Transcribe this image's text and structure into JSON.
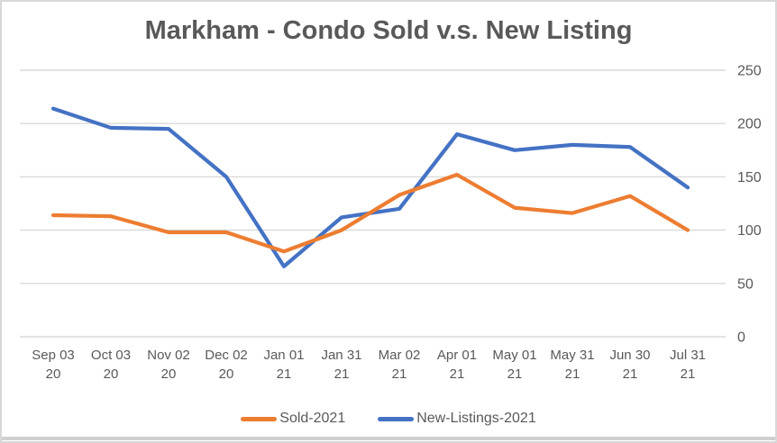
{
  "title": "Markham - Condo Sold v.s. New Listing",
  "colors": {
    "sold": "#ED7D31",
    "new_listings": "#4472C4",
    "gridline": "#d9d9d9",
    "axis_text": "#595959",
    "title_text": "#595959",
    "frame_border": "#d8d8d8",
    "bottom_edge": "#cfcfcf"
  },
  "legend": {
    "items": [
      {
        "label": "Sold-2021",
        "color": "#ED7D31"
      },
      {
        "label": "New-Listings-2021",
        "color": "#4472C4"
      }
    ]
  },
  "y_axis": {
    "side": "right",
    "ticks": [
      0,
      50,
      100,
      150,
      200,
      250
    ]
  },
  "chart_data": {
    "type": "line",
    "title": "Markham - Condo Sold v.s. New Listing",
    "categories": [
      "Sep 03 20",
      "Oct 03 20",
      "Nov 02 20",
      "Dec 02 20",
      "Jan 01 21",
      "Jan 31 21",
      "Mar 02 21",
      "Apr 01 21",
      "May 01 21",
      "May 31 21",
      "Jun 30 21",
      "Jul 31 21"
    ],
    "series": [
      {
        "name": "Sold-2021",
        "color": "#ED7D31",
        "values": [
          114,
          113,
          98,
          98,
          80,
          100,
          133,
          152,
          121,
          116,
          132,
          100
        ]
      },
      {
        "name": "New-Listings-2021",
        "color": "#4472C4",
        "values": [
          214,
          196,
          195,
          150,
          66,
          112,
          120,
          190,
          175,
          180,
          178,
          140
        ]
      }
    ],
    "xlabel": "",
    "ylabel": "",
    "ylim": [
      0,
      250
    ],
    "ytick_step": 50,
    "grid": true,
    "legend_position": "bottom",
    "y_axis_side": "right"
  }
}
